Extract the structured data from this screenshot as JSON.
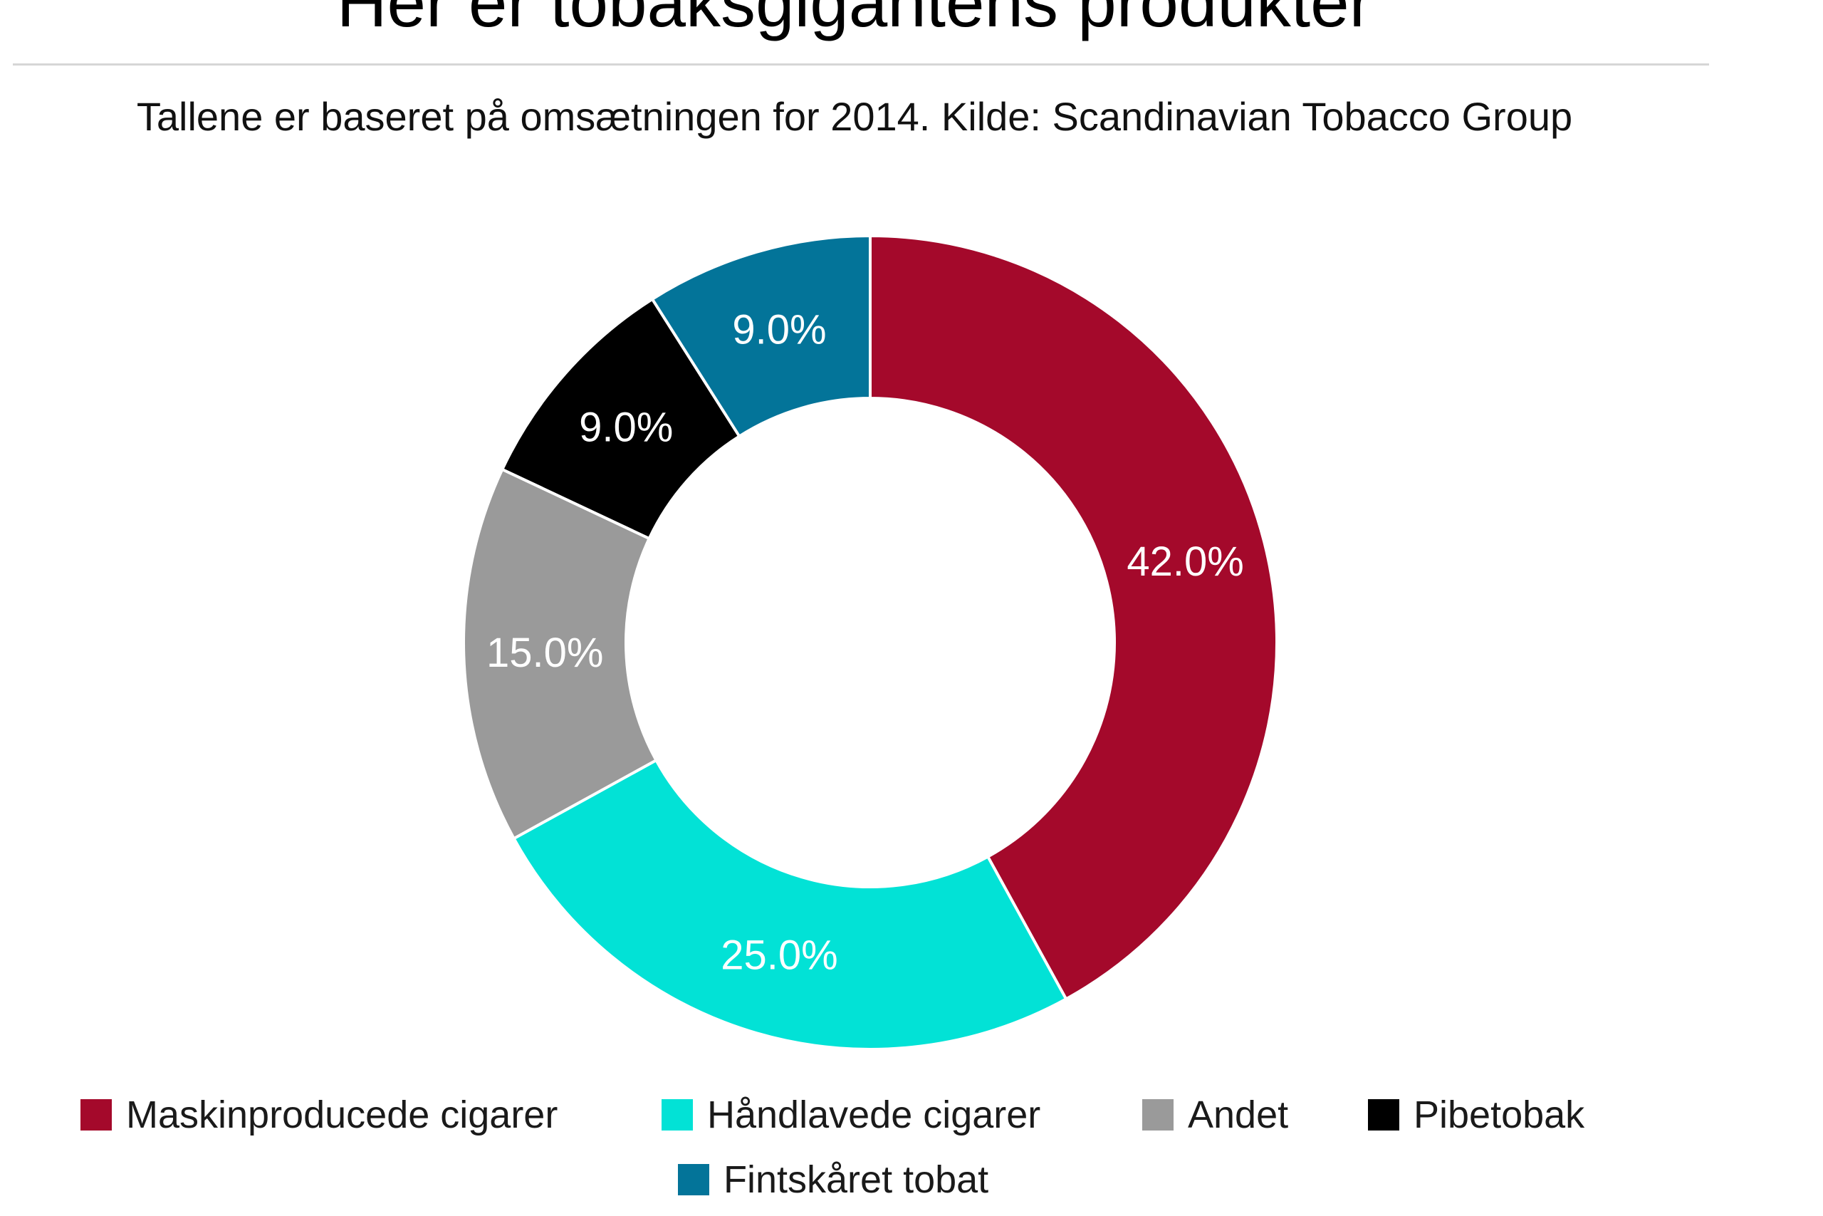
{
  "chart_data": {
    "type": "pie",
    "title": "Her er tobaksgigantens produkter",
    "subtitle": "Tallene er baseret på omsætningen for 2014. Kilde: Scandinavian Tobacco Group",
    "donut": true,
    "legend_position": "bottom",
    "slices": [
      {
        "name": "Maskinproducede cigarer",
        "value": 42.0,
        "label": "42.0%",
        "color": "#a4092b"
      },
      {
        "name": "Håndlavede cigarer",
        "value": 25.0,
        "label": "25.0%",
        "color": "#02e2d6"
      },
      {
        "name": "Andet",
        "value": 15.0,
        "label": "15.0%",
        "color": "#9a9a9a"
      },
      {
        "name": "Pibetobak",
        "value": 9.0,
        "label": "9.0%",
        "color": "#000000"
      },
      {
        "name": "Fintskåret tobat",
        "value": 9.0,
        "label": "9.0%",
        "color": "#037499"
      }
    ]
  }
}
